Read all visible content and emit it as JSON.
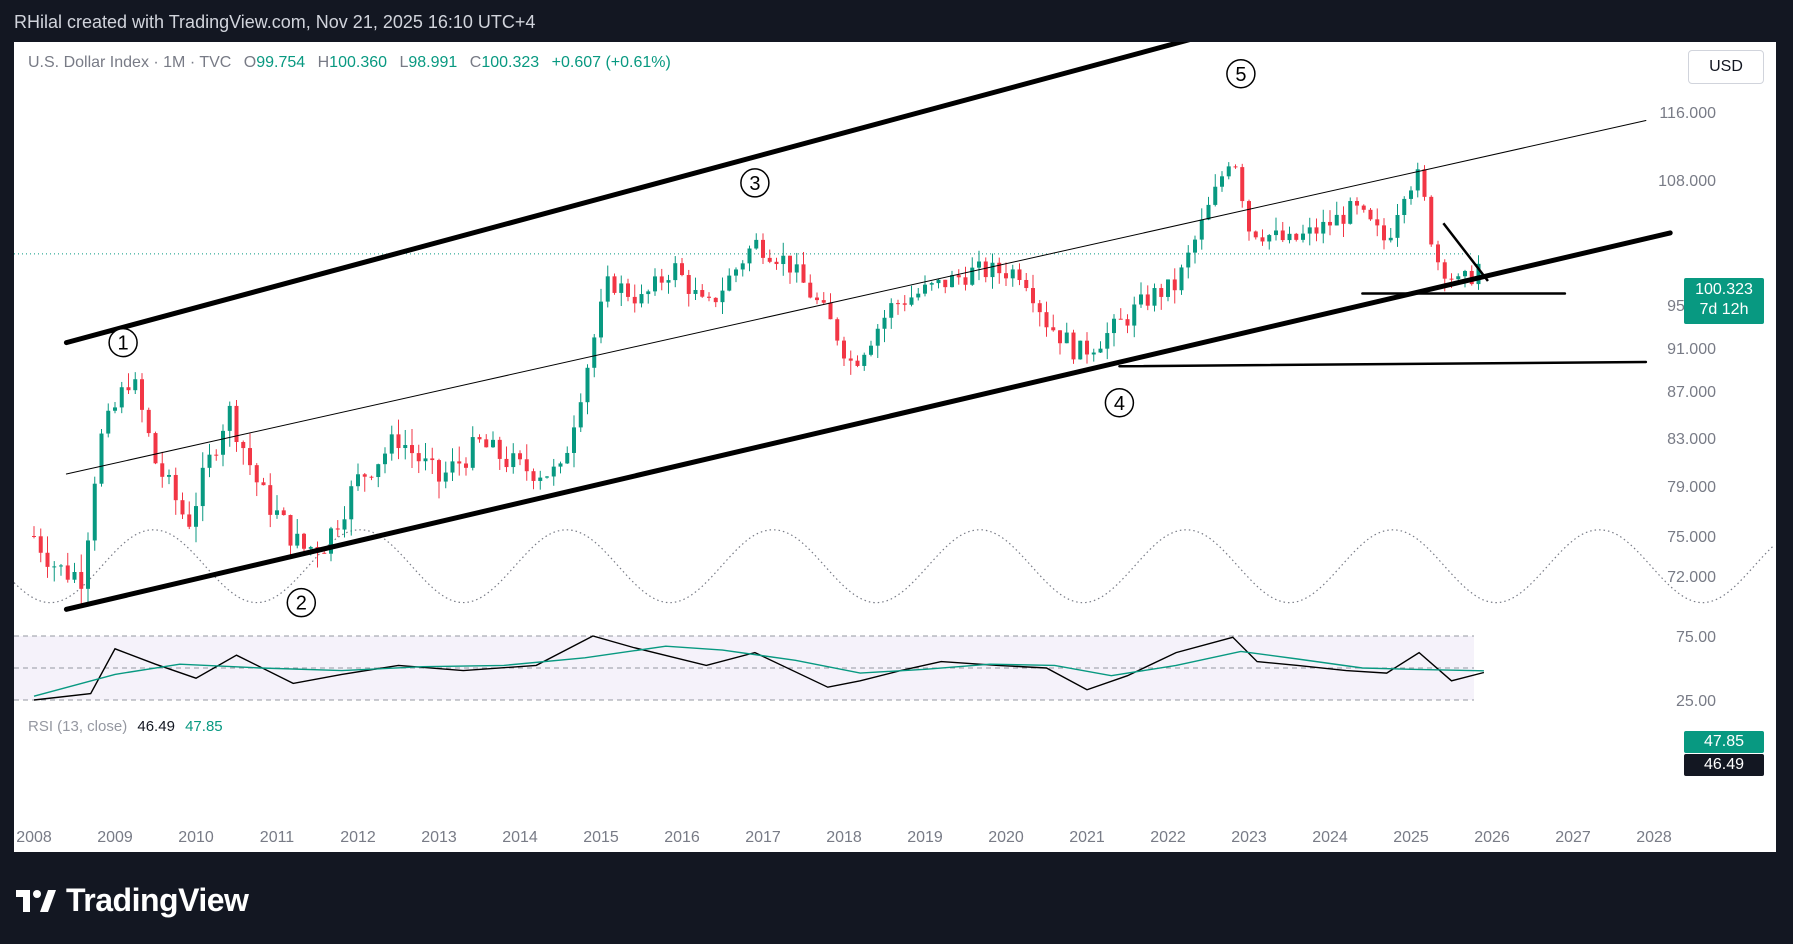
{
  "header": {
    "text": "RHilal created with TradingView.com, Nov 21, 2025 16:10 UTC+4"
  },
  "legend": {
    "symbol": "U.S. Dollar Index · 1M · TVC",
    "open_label": "O",
    "open": "99.754",
    "high_label": "H",
    "high": "100.360",
    "low_label": "L",
    "low": "98.991",
    "close_label": "C",
    "close": "100.323",
    "change": "+0.607 (+0.61%)"
  },
  "currency_button": "USD",
  "price_tag": {
    "price": "100.323",
    "countdown": "7d 12h"
  },
  "rsi_legend": {
    "label": "RSI (13, close)",
    "value": "46.49",
    "ma": "47.85"
  },
  "rsi_tags": {
    "ma": "47.85",
    "value": "46.49"
  },
  "footer": {
    "brand": "TradingView"
  },
  "colors": {
    "up": "#089981",
    "down": "#f23645",
    "background": "#131722",
    "accent": "#089981"
  },
  "chart_data": [
    {
      "type": "candlestick",
      "title": "U.S. Dollar Index",
      "timeframe": "1M",
      "x_ticks": [
        "2008",
        "2009",
        "2010",
        "2011",
        "2012",
        "2013",
        "2014",
        "2015",
        "2016",
        "2017",
        "2018",
        "2019",
        "2020",
        "2021",
        "2022",
        "2023",
        "2024",
        "2025",
        "2026",
        "2027",
        "2028"
      ],
      "y_ticks": [
        "116.000",
        "108.000",
        "95.000",
        "91.000",
        "87.000",
        "83.000",
        "79.000",
        "75.000",
        "72.000"
      ],
      "last_price": 100.323,
      "wave_labels": [
        {
          "label": "1",
          "date": 2009.1,
          "price": 91.5
        },
        {
          "label": "2",
          "date": 2011.3,
          "price": 70.0
        },
        {
          "label": "3",
          "date": 2016.9,
          "price": 107.7
        },
        {
          "label": "4",
          "date": 2021.4,
          "price": 86.0
        },
        {
          "label": "5",
          "date": 2022.9,
          "price": 120.5
        }
      ],
      "series_points": [
        [
          2008.0,
          75.0
        ],
        [
          2008.3,
          72.5
        ],
        [
          2008.6,
          72.0
        ],
        [
          2008.8,
          82.5
        ],
        [
          2009.2,
          88.5
        ],
        [
          2009.5,
          81.0
        ],
        [
          2009.9,
          76.0
        ],
        [
          2010.4,
          85.5
        ],
        [
          2010.8,
          78.5
        ],
        [
          2011.3,
          74.0
        ],
        [
          2011.6,
          74.5
        ],
        [
          2012.0,
          79.5
        ],
        [
          2012.5,
          83.0
        ],
        [
          2013.0,
          79.5
        ],
        [
          2013.5,
          82.5
        ],
        [
          2014.0,
          80.5
        ],
        [
          2014.5,
          80.0
        ],
        [
          2014.8,
          88.5
        ],
        [
          2015.1,
          97.5
        ],
        [
          2015.5,
          95.5
        ],
        [
          2015.9,
          99.0
        ],
        [
          2016.3,
          94.5
        ],
        [
          2016.9,
          101.5
        ],
        [
          2017.3,
          99.5
        ],
        [
          2017.9,
          92.5
        ],
        [
          2018.1,
          89.5
        ],
        [
          2018.6,
          95.0
        ],
        [
          2019.0,
          96.5
        ],
        [
          2019.6,
          98.5
        ],
        [
          2020.2,
          98.5
        ],
        [
          2020.5,
          93.5
        ],
        [
          2020.9,
          90.5
        ],
        [
          2021.3,
          92.5
        ],
        [
          2021.8,
          96.0
        ],
        [
          2022.1,
          97.0
        ],
        [
          2022.6,
          107.0
        ],
        [
          2022.8,
          111.5
        ],
        [
          2023.0,
          103.0
        ],
        [
          2023.5,
          101.5
        ],
        [
          2023.9,
          103.0
        ],
        [
          2024.3,
          105.0
        ],
        [
          2024.7,
          101.5
        ],
        [
          2024.9,
          107.0
        ],
        [
          2025.1,
          108.5
        ],
        [
          2025.3,
          100.0
        ],
        [
          2025.6,
          97.0
        ],
        [
          2025.8,
          98.5
        ],
        [
          2025.9,
          100.323
        ]
      ],
      "trendlines": [
        {
          "name": "upper channel",
          "points": [
            [
              2008.4,
              91.5
            ],
            [
              2027.9,
              139.0
            ]
          ]
        },
        {
          "name": "lower channel",
          "points": [
            [
              2008.4,
              69.5
            ],
            [
              2028.2,
              102.5
            ]
          ]
        },
        {
          "name": "mid line",
          "points": [
            [
              2008.4,
              80.0
            ],
            [
              2027.9,
              115.0
            ]
          ]
        },
        {
          "name": "horizontal support",
          "points": [
            [
              2021.4,
              89.3
            ],
            [
              2027.9,
              89.7
            ]
          ]
        },
        {
          "name": "horizontal support 2",
          "points": [
            [
              2024.4,
              96.2
            ],
            [
              2026.9,
              96.2
            ]
          ]
        }
      ],
      "cycle": {
        "style": "dotted",
        "min_price": 70.0,
        "max_price": 75.5,
        "troughs": [
          2008.2,
          2011.0,
          2013.5,
          2016.0,
          2018.8,
          2021.3,
          2023.8,
          2026.5
        ]
      }
    },
    {
      "type": "line",
      "title": "RSI (13, close)",
      "y_ticks": [
        "75.00",
        "25.00"
      ],
      "bands": [
        75,
        50,
        25
      ],
      "series": [
        {
          "name": "RSI",
          "values_at": [
            [
              2008.0,
              25
            ],
            [
              2008.7,
              30
            ],
            [
              2009.0,
              65
            ],
            [
              2009.5,
              53
            ],
            [
              2010.0,
              42
            ],
            [
              2010.5,
              60
            ],
            [
              2011.2,
              38
            ],
            [
              2011.8,
              45
            ],
            [
              2012.5,
              52
            ],
            [
              2013.3,
              48
            ],
            [
              2014.2,
              52
            ],
            [
              2014.9,
              75
            ],
            [
              2015.4,
              66
            ],
            [
              2016.3,
              52
            ],
            [
              2016.9,
              62
            ],
            [
              2017.8,
              35
            ],
            [
              2018.2,
              40
            ],
            [
              2018.7,
              48
            ],
            [
              2019.2,
              55
            ],
            [
              2019.9,
              52
            ],
            [
              2020.5,
              50
            ],
            [
              2021.0,
              33
            ],
            [
              2021.5,
              44
            ],
            [
              2022.1,
              62
            ],
            [
              2022.8,
              74
            ],
            [
              2023.1,
              55
            ],
            [
              2023.6,
              52
            ],
            [
              2024.2,
              48
            ],
            [
              2024.7,
              46
            ],
            [
              2025.1,
              62
            ],
            [
              2025.5,
              40
            ],
            [
              2025.9,
              46.49
            ]
          ]
        },
        {
          "name": "RSI MA",
          "values_at": [
            [
              2008.0,
              28
            ],
            [
              2009.0,
              45
            ],
            [
              2009.8,
              53
            ],
            [
              2010.8,
              50
            ],
            [
              2011.8,
              48
            ],
            [
              2012.8,
              51
            ],
            [
              2013.8,
              52
            ],
            [
              2014.8,
              58
            ],
            [
              2015.8,
              67
            ],
            [
              2016.5,
              64
            ],
            [
              2017.4,
              56
            ],
            [
              2018.2,
              46
            ],
            [
              2019.0,
              49
            ],
            [
              2019.8,
              53
            ],
            [
              2020.6,
              52
            ],
            [
              2021.3,
              44
            ],
            [
              2022.1,
              52
            ],
            [
              2022.9,
              63
            ],
            [
              2023.6,
              57
            ],
            [
              2024.4,
              50
            ],
            [
              2025.0,
              49
            ],
            [
              2025.9,
              47.85
            ]
          ]
        }
      ]
    }
  ]
}
